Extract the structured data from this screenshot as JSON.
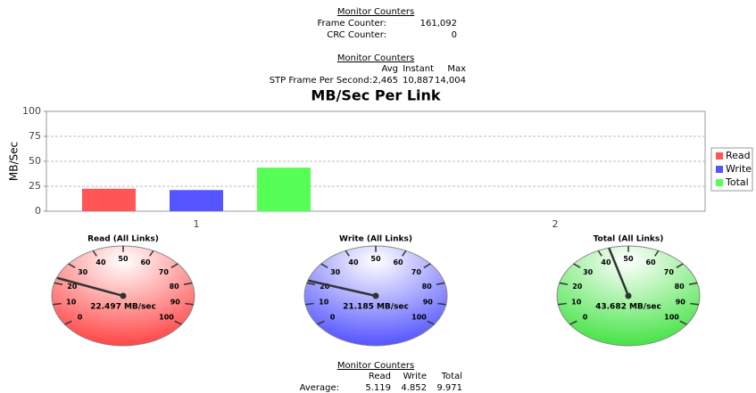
{
  "counters_top": {
    "title": "Monitor Counters",
    "rows": [
      [
        "Frame Counter:",
        "161,092"
      ],
      [
        "CRC Counter:",
        "0"
      ]
    ]
  },
  "counters_stp": {
    "title": "Monitor Counters",
    "headers": [
      "Avg",
      "Instant",
      "Max"
    ],
    "row_label": "STP Frame Per Second:",
    "values": [
      "2,465",
      "10,887",
      "14,004"
    ]
  },
  "counters_bottom": {
    "title": "Monitor Counters",
    "headers": [
      "Read",
      "Write",
      "Total"
    ],
    "row_label": "Average:",
    "values": [
      "5.119",
      "4.852",
      "9.971"
    ]
  },
  "chart_data": [
    {
      "type": "bar",
      "title": "MB/Sec Per Link",
      "y_label": "MB/Sec",
      "categories": [
        "1",
        "2"
      ],
      "series": [
        {
          "name": "Read",
          "color": "#ff5555",
          "values": [
            22.497,
            0
          ]
        },
        {
          "name": "Write",
          "color": "#5555ff",
          "values": [
            21.185,
            0
          ]
        },
        {
          "name": "Total",
          "color": "#55ff55",
          "values": [
            43.682,
            0
          ]
        }
      ],
      "ylim": [
        0,
        100
      ],
      "yticks": [
        0,
        25,
        50,
        75,
        100
      ],
      "grid": true,
      "legend": "right"
    },
    {
      "type": "gauge",
      "title": "Read (All Links)",
      "value": 22.497,
      "value_label": "22.497 MB/sec",
      "lim": [
        0,
        100
      ],
      "ticks": [
        0,
        10,
        20,
        30,
        40,
        50,
        60,
        70,
        80,
        90,
        100
      ],
      "color": "#ff3030"
    },
    {
      "type": "gauge",
      "title": "Write (All Links)",
      "value": 21.185,
      "value_label": "21.185 MB/sec",
      "lim": [
        0,
        100
      ],
      "ticks": [
        0,
        10,
        20,
        30,
        40,
        50,
        60,
        70,
        80,
        90,
        100
      ],
      "color": "#4040ff"
    },
    {
      "type": "gauge",
      "title": "Total (All Links)",
      "value": 43.682,
      "value_label": "43.682 MB/sec",
      "lim": [
        0,
        100
      ],
      "ticks": [
        0,
        10,
        20,
        30,
        40,
        50,
        60,
        70,
        80,
        90,
        100
      ],
      "color": "#30e030"
    }
  ]
}
